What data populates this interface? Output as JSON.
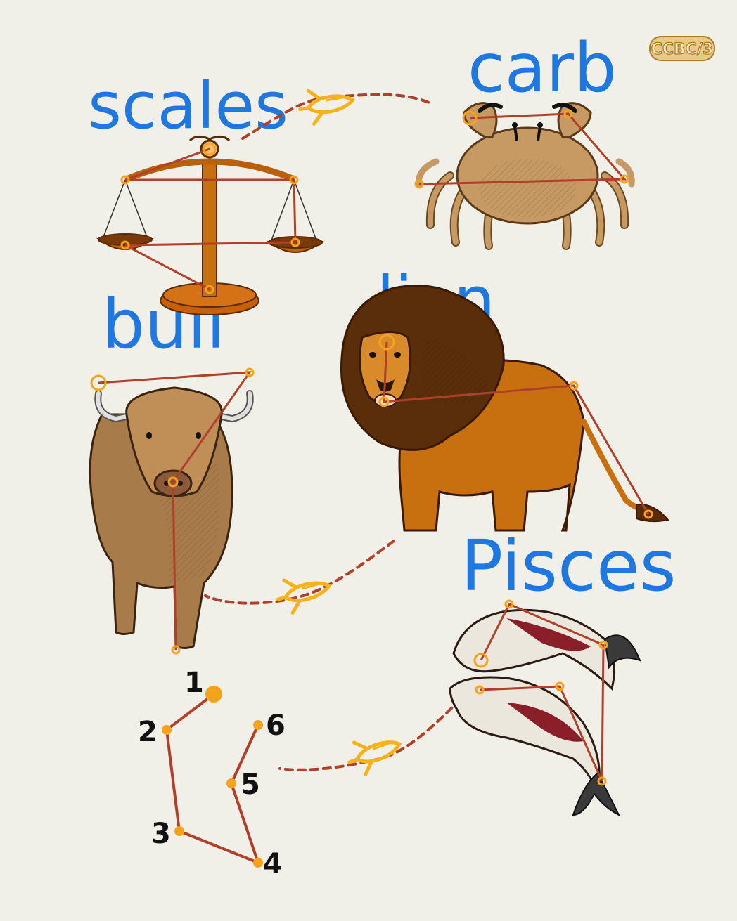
{
  "logo": {
    "text": "CCBC/3"
  },
  "labels": {
    "scales": "scales",
    "carb": "carb",
    "bull": "bull",
    "lion": "lion",
    "pisces": "Pisces"
  },
  "sequence": {
    "numbers": [
      "1",
      "2",
      "3",
      "4",
      "5",
      "6"
    ]
  },
  "colors": {
    "background": "#f0efe8",
    "handwriting": "#1f77e0",
    "constellation_line": "#b0402a",
    "star": "#f6a21a",
    "path_dashed": "#b0402a",
    "rocket": "#f6b21a"
  },
  "icons": [
    "balance-scale",
    "crab",
    "bull",
    "lion",
    "koi-fish-pair",
    "rocket-icon"
  ]
}
